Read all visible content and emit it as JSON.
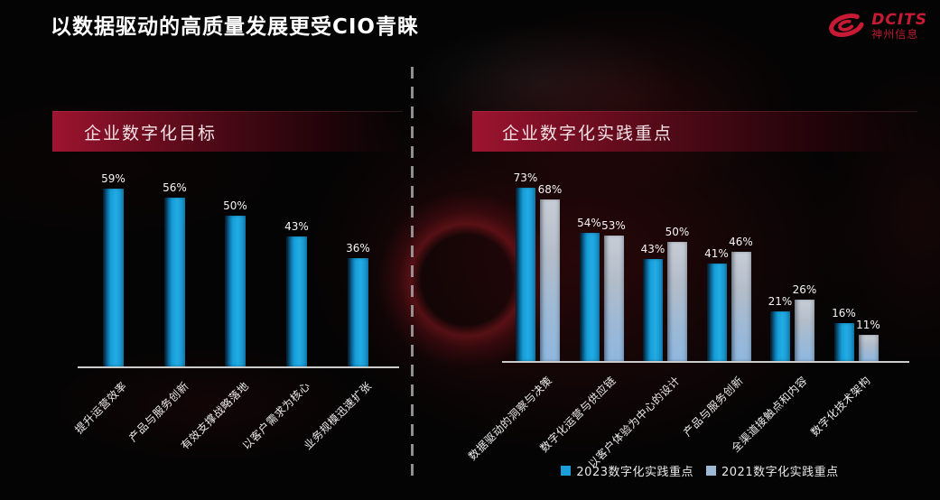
{
  "slide": {
    "title": "以数据驱动的高质量发展更受CIO青睐"
  },
  "logo": {
    "brand": "DCITS",
    "company": "神州信息",
    "color": "#c81a34"
  },
  "left_panel": {
    "header": "企业数字化目标"
  },
  "right_panel": {
    "header": "企业数字化实践重点"
  },
  "colors": {
    "bar_2023": "#189fd9",
    "bar_2021": "#9db9d6",
    "banner_red": "#8c1129",
    "axis": "#cbcbcb"
  },
  "chart_data": [
    {
      "type": "bar",
      "title": "企业数字化目标",
      "categories": [
        "提升运营效率",
        "产品与服务创新",
        "有效支撑战略落地",
        "以客户需求为核心",
        "业务规模迅速扩张"
      ],
      "values": [
        59,
        56,
        50,
        43,
        36
      ],
      "unit": "%",
      "xlabel": "",
      "ylabel": "",
      "ylim": [
        0,
        65
      ],
      "grid": false,
      "legend_position": "none",
      "data_labels": [
        "59%",
        "56%",
        "50%",
        "43%",
        "36%"
      ]
    },
    {
      "type": "bar",
      "title": "企业数字化实践重点",
      "categories": [
        "数据驱动的洞察与决策",
        "数字化运营与供应链",
        "以客户体验为中心的设计",
        "产品与服务创新",
        "全渠道接触点和内容",
        "数字化技术架构"
      ],
      "series": [
        {
          "name": "2023数字化实践重点",
          "color": "#1b9ed9",
          "values": [
            73,
            54,
            43,
            41,
            21,
            16
          ]
        },
        {
          "name": "2021数字化实践重点",
          "color": "#9db9d6",
          "values": [
            68,
            53,
            50,
            46,
            26,
            11
          ]
        }
      ],
      "unit": "%",
      "xlabel": "",
      "ylabel": "",
      "ylim": [
        0,
        80
      ],
      "grid": false,
      "legend_position": "bottom"
    }
  ]
}
